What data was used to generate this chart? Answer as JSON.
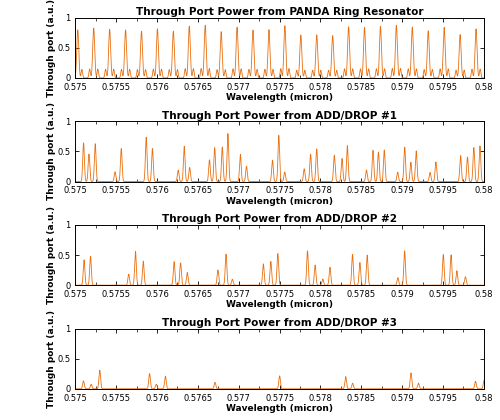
{
  "titles": [
    "Through Port Power from PANDA Ring Resonator",
    "Through Port Power from ADD/DROP #1",
    "Through Port Power from ADD/DROP #2",
    "Through Port Power from ADD/DROP #3"
  ],
  "xlabel": "Wavelength (micron)",
  "ylabel": "Through port (a.u.)",
  "xlim": [
    0.575,
    0.58
  ],
  "ylim": [
    0,
    1
  ],
  "line_color": "#E87010",
  "background_color": "#ffffff",
  "xticks": [
    0.575,
    0.5755,
    0.576,
    0.5765,
    0.577,
    0.5775,
    0.578,
    0.5785,
    0.579,
    0.5795,
    0.58
  ],
  "xticklabels": [
    "0.575",
    "0.5755",
    "0.576",
    "0.5765",
    "0.577",
    "0.5775",
    "0.578",
    "0.5785",
    "0.579",
    "0.5795",
    "0.58"
  ],
  "yticks": [
    0,
    0.5,
    1
  ],
  "yticklabels": [
    "0",
    "0.5",
    "1"
  ],
  "title_fontsize": 7.5,
  "label_fontsize": 6.5,
  "tick_fontsize": 6.0,
  "linewidth": 0.6
}
